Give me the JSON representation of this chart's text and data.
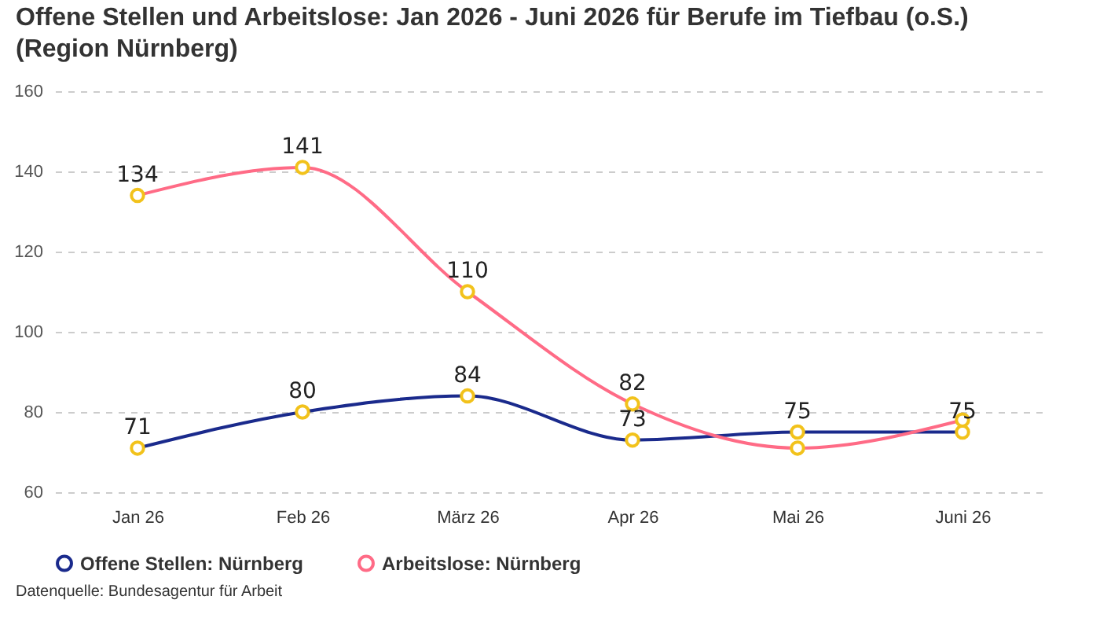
{
  "chart_data": {
    "type": "line",
    "title": "Offene Stellen und Arbeitslose: Jan 2026 - Juni 2026 für Berufe im Tiefbau (o.S.) (Region Nürnberg)",
    "categories": [
      "Jan 26",
      "Feb 26",
      "März 26",
      "Apr 26",
      "Mai 26",
      "Juni 26"
    ],
    "series": [
      {
        "name": "Offene Stellen: Nürnberg",
        "color": "#1a2a8c",
        "values": [
          71,
          80,
          84,
          73,
          75,
          75
        ],
        "value_labels": [
          "71",
          "80",
          "84",
          "73",
          "75",
          "75"
        ]
      },
      {
        "name": "Arbeitslose: Nürnberg",
        "color": "#ff6b86",
        "values": [
          134,
          141,
          110,
          82,
          71,
          78
        ],
        "value_labels": [
          "134",
          "141",
          "110",
          "82",
          null,
          null
        ]
      }
    ],
    "ylim": [
      60,
      160
    ],
    "yticks": [
      60,
      80,
      100,
      120,
      140,
      160
    ],
    "grid": "y",
    "legend": "bottom",
    "marker": "circle",
    "annotations": [
      "Datenquelle: Bundesagentur für Arbeit"
    ]
  }
}
